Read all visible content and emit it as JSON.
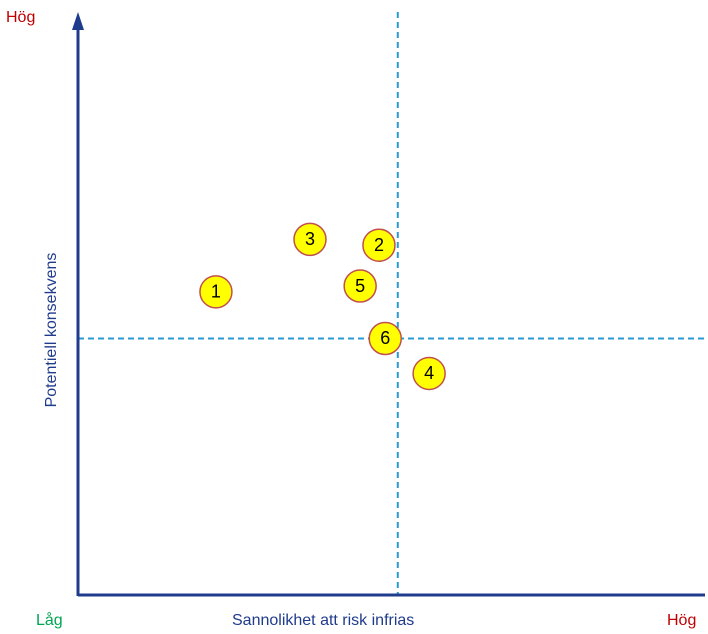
{
  "chart_data": {
    "type": "scatter",
    "xlabel": "Sannolikhet att risk infrias",
    "ylabel": "Potentiell konsekvens",
    "x_low_label": "Låg",
    "x_high_label": "Hög",
    "y_high_label": "Hög",
    "xlim": [
      0,
      100
    ],
    "ylim": [
      0,
      100
    ],
    "threshold_x": 51,
    "threshold_y": 44,
    "grid": false,
    "points": [
      {
        "label": "1",
        "x": 22,
        "y": 52
      },
      {
        "label": "2",
        "x": 48,
        "y": 60
      },
      {
        "label": "3",
        "x": 37,
        "y": 61
      },
      {
        "label": "4",
        "x": 56,
        "y": 38
      },
      {
        "label": "5",
        "x": 45,
        "y": 53
      },
      {
        "label": "6",
        "x": 49,
        "y": 44
      }
    ]
  },
  "colors": {
    "axis": "#1f3b8c",
    "threshold": "#2a9ad4",
    "point_fill": "#ffff00",
    "point_stroke": "#c0504d",
    "high": "#c00000",
    "low": "#00a651",
    "axis_text": "#1f3b8c"
  }
}
